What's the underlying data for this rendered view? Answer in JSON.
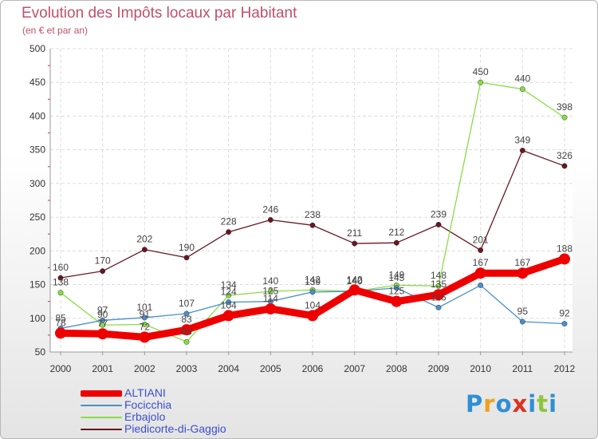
{
  "title": "Evolution des Impôts locaux par Habitant",
  "subtitle": "(en € et par an)",
  "brand": {
    "letters": [
      "P",
      "r",
      "o",
      "x",
      "i",
      "t",
      "i"
    ],
    "colors": [
      "#2e8fd6",
      "#f0a020",
      "#2e8fd6",
      "#e03020",
      "#2e8fd6",
      "#8cc63e",
      "#2e8fd6"
    ]
  },
  "chart_data": {
    "type": "line",
    "x": [
      "2000",
      "2001",
      "2002",
      "2003",
      "2004",
      "2005",
      "2006",
      "2007",
      "2008",
      "2009",
      "2010",
      "2011",
      "2012"
    ],
    "ylim": [
      50,
      500
    ],
    "yticks": [
      "50",
      "100",
      "150",
      "200",
      "250",
      "300",
      "350",
      "400",
      "450",
      "500"
    ],
    "grid": true,
    "legend_position": "bottom-left",
    "series": [
      {
        "name": "ALTIANI",
        "color": "#ee0000",
        "values": [
          78,
          77,
          72,
          83,
          104,
          114,
          104,
          142,
          125,
          135,
          167,
          167,
          188
        ],
        "labels": [
          "78",
          "77",
          "72",
          "83",
          "104",
          "114",
          "104",
          "142",
          "125",
          "135",
          "167",
          "167",
          "188"
        ]
      },
      {
        "name": "Focicchia",
        "color": "#4a8fcc",
        "values": [
          85,
          97,
          101,
          107,
          124,
          125,
          139,
          140,
          145,
          116,
          149,
          95,
          92
        ],
        "labels": [
          "85",
          "97",
          "101",
          "107",
          "124",
          "125",
          "139",
          "140",
          "145",
          "116",
          "",
          "95",
          "92"
        ]
      },
      {
        "name": "Erbajolo",
        "color": "#88dd44",
        "values": [
          138,
          90,
          91,
          65,
          134,
          140,
          142,
          140,
          149,
          148,
          450,
          440,
          398
        ],
        "labels": [
          "138",
          "90",
          "91",
          "65",
          "134",
          "140",
          "142",
          "140",
          "149",
          "148",
          "450",
          "440",
          "398"
        ]
      },
      {
        "name": "Piedicorte-di-Gaggio",
        "color": "#6a1620",
        "values": [
          160,
          170,
          202,
          190,
          228,
          246,
          238,
          211,
          212,
          239,
          201,
          349,
          326
        ],
        "labels": [
          "160",
          "170",
          "202",
          "190",
          "228",
          "246",
          "238",
          "211",
          "212",
          "239",
          "201",
          "349",
          "326"
        ]
      }
    ]
  }
}
